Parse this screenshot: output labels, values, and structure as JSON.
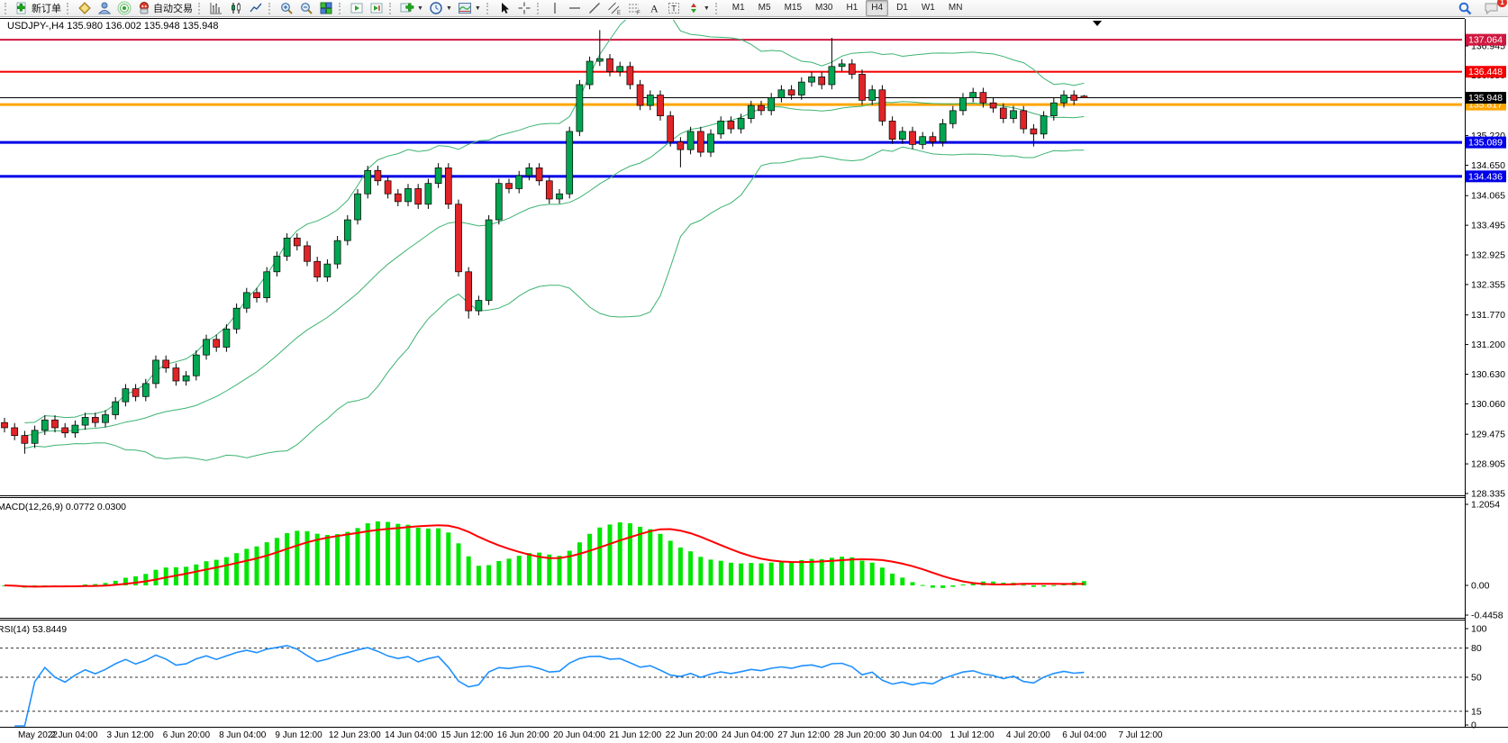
{
  "toolbar": {
    "new_order_label": "新订单",
    "autotrade_label": "自动交易",
    "timeframes": [
      "M1",
      "M5",
      "M15",
      "M30",
      "H1",
      "H4",
      "D1",
      "W1",
      "MN"
    ],
    "active_timeframe": "H4",
    "chat_badge_count": "1"
  },
  "chart": {
    "header": {
      "symbol": "USDJPY-",
      "period": "H4",
      "open": "135.980",
      "high": "136.002",
      "low": "135.948",
      "close": "135.948"
    },
    "current_price": {
      "value": 135.948,
      "label": "135.948",
      "color": "#000000"
    },
    "levels": [
      {
        "price": 137.064,
        "label": "137.064",
        "color": "#cf1840",
        "width": 2
      },
      {
        "price": 136.448,
        "label": "136.448",
        "color": "#f50000",
        "width": 2
      },
      {
        "price": 135.817,
        "label": "135.817",
        "color": "#ffa500",
        "width": 3
      },
      {
        "price": 135.089,
        "label": "135.089",
        "color": "#0000e8",
        "width": 3
      },
      {
        "price": 134.436,
        "label": "134.436",
        "color": "#0000e8",
        "width": 3
      }
    ],
    "price_axis_ticks": [
      "136.945",
      "136.380",
      "135.220",
      "134.650",
      "134.065",
      "133.495",
      "132.925",
      "132.355",
      "131.770",
      "131.200",
      "130.630",
      "130.060",
      "129.475",
      "128.905",
      "128.335"
    ],
    "time_axis": [
      "May 2022",
      "2 Jun 04:00",
      "3 Jun 12:00",
      "6 Jun 20:00",
      "8 Jun 04:00",
      "9 Jun 12:00",
      "12 Jun 23:00",
      "14 Jun 04:00",
      "15 Jun 12:00",
      "16 Jun 20:00",
      "20 Jun 04:00",
      "21 Jun 12:00",
      "22 Jun 20:00",
      "24 Jun 04:00",
      "27 Jun 12:00",
      "28 Jun 20:00",
      "30 Jun 04:00",
      "1 Jul 12:00",
      "4 Jul 20:00",
      "6 Jul 04:00",
      "7 Jul 12:00"
    ],
    "macd_pane": {
      "label": "MACD(12,26,9)",
      "value_main": "0.0772",
      "value_signal": "0.0300",
      "axis": [
        {
          "v": 1.2054,
          "t": "1.2054"
        },
        {
          "v": 0,
          "t": "0.00"
        },
        {
          "v": -0.4458,
          "t": "-0.4458"
        }
      ]
    },
    "rsi_pane": {
      "label": "RSI(14)",
      "value": "53.8449",
      "axis": [
        {
          "v": 100,
          "t": "100"
        },
        {
          "v": 80,
          "t": "80"
        },
        {
          "v": 50,
          "t": "50"
        },
        {
          "v": 15,
          "t": "15"
        },
        {
          "v": 0,
          "t": "0"
        }
      ],
      "dashed_levels": [
        80,
        50,
        15
      ]
    }
  },
  "chart_data": {
    "type": "candlestick",
    "symbol": "USDJPY-",
    "timeframe": "H4",
    "ohlc_current": {
      "open": 135.98,
      "high": 136.002,
      "low": 135.948,
      "close": 135.948
    },
    "price_range_visible": [
      128.335,
      137.19
    ],
    "overlays": {
      "bollinger": {
        "period": 20,
        "deviation": 2,
        "color": "#3cb371"
      },
      "macd": {
        "fast": 12,
        "slow": 26,
        "signal": 9,
        "hist_color": "#00e600",
        "signal_color": "#ff0000",
        "axis_range": [
          -0.4458,
          1.2054
        ],
        "current": [
          0.0772,
          0.03
        ]
      },
      "rsi": {
        "period": 14,
        "color": "#1e90ff",
        "current": 53.8449,
        "axis_range": [
          0,
          100
        ]
      }
    },
    "colors": {
      "bull": "#00a651",
      "bear": "#e02428",
      "wick": "#000000",
      "background": "#ffffff"
    },
    "candles": [
      [
        129.7,
        129.79,
        129.51,
        129.6
      ],
      [
        129.6,
        129.69,
        129.36,
        129.45
      ],
      [
        129.45,
        129.54,
        129.1,
        129.3
      ],
      [
        129.3,
        129.64,
        129.21,
        129.55
      ],
      [
        129.55,
        129.84,
        129.46,
        129.75
      ],
      [
        129.75,
        129.84,
        129.51,
        129.6
      ],
      [
        129.6,
        129.69,
        129.41,
        129.5
      ],
      [
        129.5,
        129.74,
        129.41,
        129.65
      ],
      [
        129.65,
        129.89,
        129.56,
        129.8
      ],
      [
        129.8,
        129.89,
        129.61,
        129.7
      ],
      [
        129.7,
        129.94,
        129.61,
        129.85
      ],
      [
        129.85,
        130.19,
        129.76,
        130.1
      ],
      [
        130.1,
        130.44,
        130.01,
        130.35
      ],
      [
        130.35,
        130.44,
        130.11,
        130.2
      ],
      [
        130.2,
        130.54,
        130.11,
        130.45
      ],
      [
        130.45,
        130.99,
        130.36,
        130.9
      ],
      [
        130.9,
        130.99,
        130.66,
        130.75
      ],
      [
        130.75,
        130.84,
        130.41,
        130.5
      ],
      [
        130.5,
        130.69,
        130.41,
        130.6
      ],
      [
        130.6,
        131.09,
        130.51,
        131.0
      ],
      [
        131.0,
        131.39,
        130.91,
        131.3
      ],
      [
        131.3,
        131.39,
        131.06,
        131.15
      ],
      [
        131.15,
        131.59,
        131.06,
        131.5
      ],
      [
        131.5,
        131.99,
        131.41,
        131.9
      ],
      [
        131.9,
        132.29,
        131.81,
        132.2
      ],
      [
        132.2,
        132.29,
        132.01,
        132.1
      ],
      [
        132.1,
        132.69,
        132.01,
        132.6
      ],
      [
        132.6,
        132.99,
        132.51,
        132.9
      ],
      [
        132.9,
        133.34,
        132.81,
        133.25
      ],
      [
        133.25,
        133.34,
        133.01,
        133.1
      ],
      [
        133.1,
        133.19,
        132.71,
        132.8
      ],
      [
        132.8,
        132.89,
        132.41,
        132.5
      ],
      [
        132.5,
        132.84,
        132.41,
        132.75
      ],
      [
        132.75,
        133.29,
        132.66,
        133.2
      ],
      [
        133.2,
        133.69,
        133.11,
        133.6
      ],
      [
        133.6,
        134.19,
        133.51,
        134.1
      ],
      [
        134.1,
        134.64,
        134.01,
        134.55
      ],
      [
        134.55,
        134.64,
        134.26,
        134.35
      ],
      [
        134.35,
        134.44,
        134.01,
        134.1
      ],
      [
        134.1,
        134.19,
        133.86,
        133.95
      ],
      [
        133.95,
        134.29,
        133.86,
        134.2
      ],
      [
        134.2,
        134.29,
        133.81,
        133.9
      ],
      [
        133.9,
        134.39,
        133.81,
        134.3
      ],
      [
        134.3,
        134.69,
        134.21,
        134.6
      ],
      [
        134.6,
        134.69,
        133.81,
        133.9
      ],
      [
        133.9,
        133.99,
        132.51,
        132.6
      ],
      [
        132.6,
        132.69,
        131.7,
        131.85
      ],
      [
        131.85,
        132.14,
        131.76,
        132.05
      ],
      [
        132.05,
        133.69,
        131.96,
        133.6
      ],
      [
        133.6,
        134.39,
        133.51,
        134.3
      ],
      [
        134.3,
        134.39,
        134.11,
        134.2
      ],
      [
        134.2,
        134.54,
        134.11,
        134.45
      ],
      [
        134.45,
        134.69,
        134.36,
        134.6
      ],
      [
        134.6,
        134.69,
        134.26,
        134.35
      ],
      [
        134.35,
        134.44,
        133.91,
        134.0
      ],
      [
        134.0,
        134.19,
        133.91,
        134.1
      ],
      [
        134.1,
        135.39,
        134.01,
        135.3
      ],
      [
        135.3,
        136.29,
        135.21,
        136.2
      ],
      [
        136.2,
        136.74,
        136.11,
        136.65
      ],
      [
        136.65,
        137.25,
        136.56,
        136.7
      ],
      [
        136.7,
        136.79,
        136.36,
        136.45
      ],
      [
        136.45,
        136.64,
        136.36,
        136.55
      ],
      [
        136.55,
        136.64,
        136.11,
        136.2
      ],
      [
        136.2,
        136.29,
        135.71,
        135.8
      ],
      [
        135.8,
        136.09,
        135.71,
        136.0
      ],
      [
        136.0,
        136.09,
        135.51,
        135.6
      ],
      [
        135.6,
        135.69,
        135.01,
        135.1
      ],
      [
        135.1,
        135.19,
        134.61,
        134.95
      ],
      [
        134.95,
        135.39,
        134.86,
        135.3
      ],
      [
        135.3,
        135.39,
        134.81,
        134.9
      ],
      [
        134.9,
        135.34,
        134.81,
        135.25
      ],
      [
        135.25,
        135.59,
        135.16,
        135.5
      ],
      [
        135.5,
        135.59,
        135.26,
        135.35
      ],
      [
        135.35,
        135.64,
        135.26,
        135.55
      ],
      [
        135.55,
        135.89,
        135.46,
        135.8
      ],
      [
        135.8,
        135.89,
        135.61,
        135.7
      ],
      [
        135.7,
        136.04,
        135.61,
        135.95
      ],
      [
        135.95,
        136.19,
        135.86,
        136.1
      ],
      [
        136.1,
        136.19,
        135.91,
        136.0
      ],
      [
        136.0,
        136.34,
        135.91,
        136.25
      ],
      [
        136.25,
        136.44,
        136.16,
        136.35
      ],
      [
        136.35,
        136.44,
        136.11,
        136.2
      ],
      [
        136.2,
        137.1,
        136.11,
        136.55
      ],
      [
        136.55,
        136.69,
        136.46,
        136.6
      ],
      [
        136.6,
        136.69,
        136.31,
        136.4
      ],
      [
        136.4,
        136.49,
        135.81,
        135.9
      ],
      [
        135.9,
        136.19,
        135.81,
        136.1
      ],
      [
        136.1,
        136.19,
        135.41,
        135.5
      ],
      [
        135.5,
        135.59,
        135.06,
        135.15
      ],
      [
        135.15,
        135.39,
        135.06,
        135.3
      ],
      [
        135.3,
        135.39,
        134.96,
        135.05
      ],
      [
        135.05,
        135.29,
        134.96,
        135.2
      ],
      [
        135.2,
        135.29,
        135.01,
        135.1
      ],
      [
        135.1,
        135.54,
        135.01,
        135.45
      ],
      [
        135.45,
        135.79,
        135.36,
        135.7
      ],
      [
        135.7,
        136.04,
        135.61,
        135.95
      ],
      [
        135.95,
        136.14,
        135.86,
        136.05
      ],
      [
        136.05,
        136.14,
        135.76,
        135.85
      ],
      [
        135.85,
        135.94,
        135.66,
        135.75
      ],
      [
        135.75,
        135.84,
        135.46,
        135.55
      ],
      [
        135.55,
        135.79,
        135.46,
        135.7
      ],
      [
        135.7,
        135.79,
        135.26,
        135.35
      ],
      [
        135.35,
        135.44,
        135.01,
        135.25
      ],
      [
        135.25,
        135.69,
        135.16,
        135.6
      ],
      [
        135.6,
        135.94,
        135.51,
        135.85
      ],
      [
        135.85,
        136.09,
        135.76,
        136.0
      ],
      [
        136.0,
        136.09,
        135.81,
        135.9
      ],
      [
        135.98,
        136.002,
        135.948,
        135.948
      ]
    ]
  }
}
